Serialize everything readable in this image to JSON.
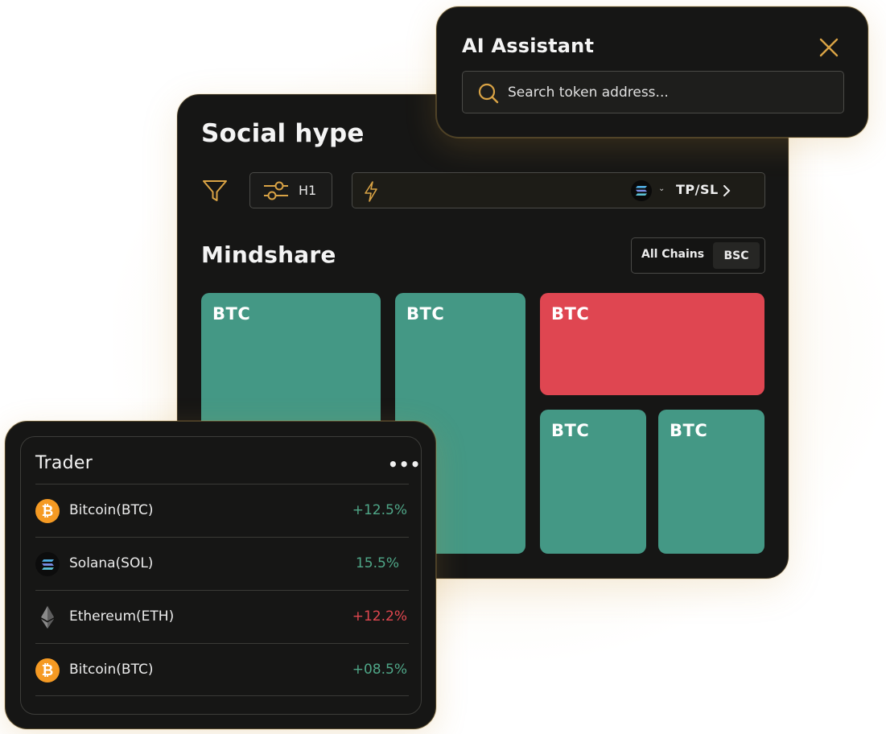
{
  "colors": {
    "card_bg": "#161615",
    "accent_gold": "#d9a345",
    "tile_green": "#449885",
    "tile_red": "#df4651",
    "positive": "#4fa788",
    "negative": "#e0474f"
  },
  "assistant": {
    "title": "AI Assistant",
    "search_placeholder": "Search token address...",
    "close_icon": "close-icon",
    "search_icon": "search-icon"
  },
  "social": {
    "title": "Social hype",
    "interval_label": "H1",
    "tpsl_label": "TP/SL",
    "mindshare_title": "Mindshare",
    "chain_filter": {
      "options": [
        "All Chains",
        "BSC"
      ],
      "selected": "BSC"
    },
    "tiles": [
      {
        "label": "BTC",
        "trend": "up"
      },
      {
        "label": "BTC",
        "trend": "up"
      },
      {
        "label": "BTC",
        "trend": "down"
      },
      {
        "label": "BTC",
        "trend": "up"
      },
      {
        "label": "BTC",
        "trend": "up"
      }
    ]
  },
  "trader": {
    "title": "Trader",
    "more_label": "•••",
    "rows": [
      {
        "name": "Bitcoin(BTC)",
        "change": "+12.5%",
        "coin": "btc",
        "direction": "up"
      },
      {
        "name": "Solana(SOL)",
        "change": "15.5%",
        "coin": "sol",
        "direction": "up"
      },
      {
        "name": "Ethereum(ETH)",
        "change": "+12.2%",
        "coin": "eth",
        "direction": "down"
      },
      {
        "name": "Bitcoin(BTC)",
        "change": "+08.5%",
        "coin": "btc",
        "direction": "up"
      }
    ]
  }
}
